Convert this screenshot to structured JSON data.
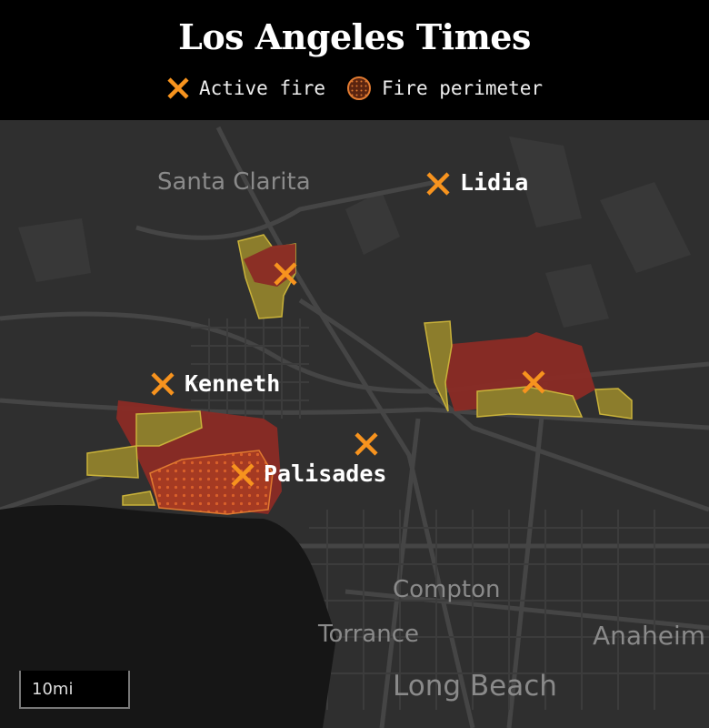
{
  "header": {
    "logo": "Los Angeles Times"
  },
  "legend": [
    {
      "icon": "x-marker-icon",
      "label": "Active fire"
    },
    {
      "icon": "dotted-circle-icon",
      "label": "Fire perimeter"
    }
  ],
  "places": [
    "Santa Clarita",
    "Compton",
    "Torrance",
    "Anaheim",
    "Long Beach"
  ],
  "fires": [
    "Lidia",
    "Kenneth",
    "Palisades"
  ],
  "scale": "10mi",
  "colors": {
    "marker": "#f7931e",
    "burned": "#8b2b25",
    "perimeter_yellow": "#8c7d2c",
    "land": "#2f2f2f",
    "ocean": "#161616",
    "road": "#444444"
  }
}
